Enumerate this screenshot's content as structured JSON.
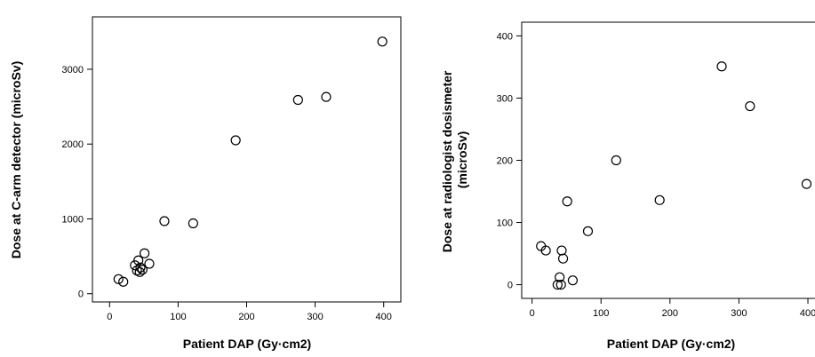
{
  "chart_data": [
    {
      "type": "scatter",
      "xlabel": "Patient DAP (Gy·cm2)",
      "ylabel": "Dose at C-arm detector (microSv)",
      "xlim": [
        -25,
        425
      ],
      "ylim": [
        -110,
        3700
      ],
      "xticks": [
        0,
        100,
        200,
        300,
        400
      ],
      "yticks": [
        0,
        1000,
        2000,
        3000
      ],
      "grid": false,
      "points": [
        {
          "x": 13,
          "y": 195
        },
        {
          "x": 20,
          "y": 160
        },
        {
          "x": 37,
          "y": 380
        },
        {
          "x": 40,
          "y": 310
        },
        {
          "x": 42,
          "y": 445
        },
        {
          "x": 44,
          "y": 290
        },
        {
          "x": 45,
          "y": 350
        },
        {
          "x": 48,
          "y": 320
        },
        {
          "x": 51,
          "y": 540
        },
        {
          "x": 58,
          "y": 400
        },
        {
          "x": 80,
          "y": 970
        },
        {
          "x": 122,
          "y": 940
        },
        {
          "x": 184,
          "y": 2050
        },
        {
          "x": 275,
          "y": 2590
        },
        {
          "x": 316,
          "y": 2630
        },
        {
          "x": 398,
          "y": 3370
        }
      ]
    },
    {
      "type": "scatter",
      "xlabel": "Patient DAP (Gy·cm2)",
      "ylabel": [
        "Dose at radiologist dosismeter",
        "(microSv)"
      ],
      "xlim": [
        -15,
        418
      ],
      "ylim": [
        -22,
        422
      ],
      "xticks": [
        0,
        100,
        200,
        300,
        400
      ],
      "yticks": [
        0,
        100,
        200,
        300,
        400
      ],
      "grid": false,
      "points": [
        {
          "x": 13,
          "y": 62
        },
        {
          "x": 20,
          "y": 55
        },
        {
          "x": 37,
          "y": 0
        },
        {
          "x": 40,
          "y": 12
        },
        {
          "x": 42,
          "y": 0
        },
        {
          "x": 43,
          "y": 55
        },
        {
          "x": 45,
          "y": 42
        },
        {
          "x": 51,
          "y": 134
        },
        {
          "x": 59,
          "y": 7
        },
        {
          "x": 81,
          "y": 86
        },
        {
          "x": 122,
          "y": 200
        },
        {
          "x": 185,
          "y": 136
        },
        {
          "x": 275,
          "y": 351
        },
        {
          "x": 316,
          "y": 287
        },
        {
          "x": 398,
          "y": 162
        }
      ]
    }
  ]
}
